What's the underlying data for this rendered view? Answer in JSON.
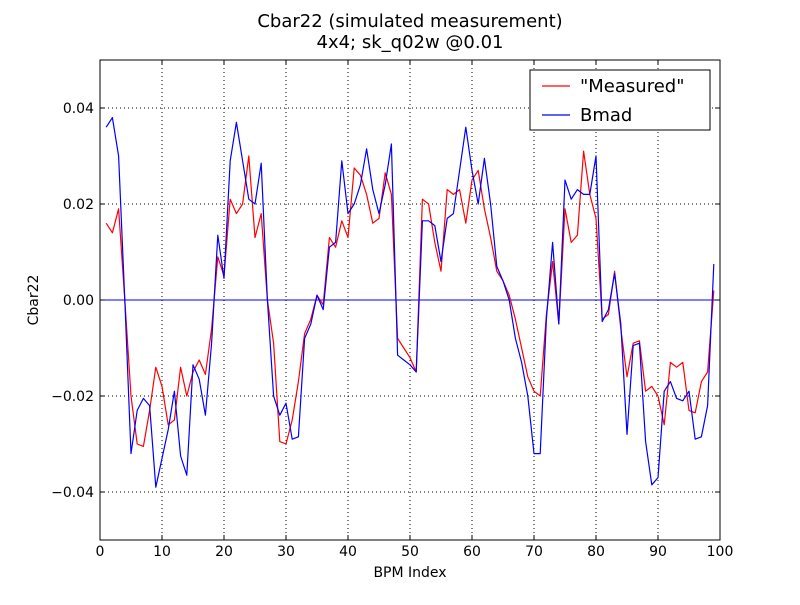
{
  "chart_data": {
    "type": "line",
    "title": "Cbar22 (simulated measurement)",
    "subtitle": "4x4; sk_q02w @0.01",
    "xlabel": "BPM Index",
    "ylabel": "Cbar22",
    "xlim": [
      0,
      100
    ],
    "ylim": [
      -0.05,
      0.05
    ],
    "xticks": [
      0,
      10,
      20,
      30,
      40,
      50,
      60,
      70,
      80,
      90,
      100
    ],
    "xtick_labels": [
      "0",
      "10",
      "20",
      "30",
      "40",
      "50",
      "60",
      "70",
      "80",
      "90",
      "100"
    ],
    "yticks": [
      -0.04,
      -0.02,
      0.0,
      0.02,
      0.04
    ],
    "ytick_labels": [
      "−0.04",
      "−0.02",
      "0.00",
      "0.02",
      "0.04"
    ],
    "grid": true,
    "legend_position": "top-right",
    "series": [
      {
        "name": "\"Measured\"",
        "color": "#ff0000",
        "x": [
          1,
          2,
          3,
          4,
          5,
          6,
          7,
          8,
          9,
          10,
          11,
          12,
          13,
          14,
          15,
          16,
          17,
          18,
          19,
          20,
          21,
          22,
          23,
          24,
          25,
          26,
          27,
          28,
          29,
          30,
          31,
          32,
          33,
          34,
          35,
          36,
          37,
          38,
          39,
          40,
          41,
          42,
          43,
          44,
          45,
          46,
          47,
          48,
          49,
          50,
          51,
          52,
          53,
          54,
          55,
          56,
          57,
          58,
          59,
          60,
          61,
          62,
          63,
          64,
          65,
          66,
          67,
          68,
          69,
          70,
          71,
          72,
          73,
          74,
          75,
          76,
          77,
          78,
          79,
          80,
          81,
          82,
          83,
          84,
          85,
          86,
          87,
          88,
          89,
          90,
          91,
          92,
          93,
          94,
          95,
          96,
          97,
          98,
          99
        ],
        "y": [
          0.016,
          0.014,
          0.019,
          0.0,
          -0.02,
          -0.03,
          -0.0305,
          -0.023,
          -0.014,
          -0.018,
          -0.026,
          -0.025,
          -0.014,
          -0.02,
          -0.015,
          -0.0125,
          -0.0155,
          -0.006,
          0.009,
          0.005,
          0.021,
          0.018,
          0.02,
          0.03,
          0.013,
          0.018,
          0.0,
          -0.009,
          -0.0295,
          -0.03,
          -0.025,
          -0.017,
          -0.007,
          -0.004,
          0.001,
          -0.001,
          0.013,
          0.011,
          0.0165,
          0.013,
          0.0275,
          0.026,
          0.022,
          0.016,
          0.017,
          0.0265,
          0.022,
          -0.008,
          -0.01,
          -0.012,
          -0.015,
          0.021,
          0.02,
          0.012,
          0.006,
          0.023,
          0.022,
          0.023,
          0.016,
          0.025,
          0.027,
          0.019,
          0.013,
          0.006,
          0.004,
          0.001,
          -0.004,
          -0.01,
          -0.016,
          -0.019,
          -0.02,
          -0.003,
          0.008,
          -0.005,
          0.019,
          0.012,
          0.0135,
          0.031,
          0.022,
          0.017,
          -0.004,
          -0.003,
          0.006,
          -0.006,
          -0.016,
          -0.009,
          -0.0085,
          -0.019,
          -0.018,
          -0.02,
          -0.026,
          -0.013,
          -0.014,
          -0.013,
          -0.023,
          -0.0235,
          -0.017,
          -0.015,
          0.002
        ]
      },
      {
        "name": "Bmad",
        "color": "#0000ff",
        "x": [
          1,
          2,
          3,
          4,
          5,
          6,
          7,
          8,
          9,
          10,
          11,
          12,
          13,
          14,
          15,
          16,
          17,
          18,
          19,
          20,
          21,
          22,
          23,
          24,
          25,
          26,
          27,
          28,
          29,
          30,
          31,
          32,
          33,
          34,
          35,
          36,
          37,
          38,
          39,
          40,
          41,
          42,
          43,
          44,
          45,
          46,
          47,
          48,
          49,
          50,
          51,
          52,
          53,
          54,
          55,
          56,
          57,
          58,
          59,
          60,
          61,
          62,
          63,
          64,
          65,
          66,
          67,
          68,
          69,
          70,
          71,
          72,
          73,
          74,
          75,
          76,
          77,
          78,
          79,
          80,
          81,
          82,
          83,
          84,
          85,
          86,
          87,
          88,
          89,
          90,
          91,
          92,
          93,
          94,
          95,
          96,
          97,
          98,
          99
        ],
        "y": [
          0.036,
          0.038,
          0.03,
          0.0,
          -0.032,
          -0.023,
          -0.0205,
          -0.022,
          -0.039,
          -0.033,
          -0.027,
          -0.019,
          -0.0325,
          -0.0365,
          -0.0135,
          -0.0165,
          -0.024,
          -0.009,
          0.0135,
          0.0045,
          0.029,
          0.037,
          0.029,
          0.021,
          0.02,
          0.0285,
          0.0,
          -0.02,
          -0.024,
          -0.0215,
          -0.029,
          -0.0285,
          -0.008,
          -0.005,
          0.001,
          -0.002,
          0.011,
          0.012,
          0.029,
          0.018,
          0.02,
          0.024,
          0.0315,
          0.023,
          0.018,
          0.024,
          0.0325,
          -0.0115,
          -0.0125,
          -0.0135,
          -0.015,
          0.0165,
          0.0165,
          0.0155,
          0.008,
          0.017,
          0.018,
          0.027,
          0.036,
          0.027,
          0.02,
          0.0295,
          0.02,
          0.007,
          0.004,
          0.0,
          -0.008,
          -0.013,
          -0.02,
          -0.032,
          -0.032,
          -0.004,
          0.012,
          -0.005,
          0.025,
          0.021,
          0.023,
          0.022,
          0.022,
          0.03,
          -0.0045,
          -0.002,
          0.0055,
          -0.005,
          -0.028,
          -0.0095,
          -0.009,
          -0.0295,
          -0.0385,
          -0.037,
          -0.019,
          -0.017,
          -0.0205,
          -0.021,
          -0.019,
          -0.029,
          -0.0285,
          -0.022,
          0.0075
        ]
      }
    ]
  }
}
